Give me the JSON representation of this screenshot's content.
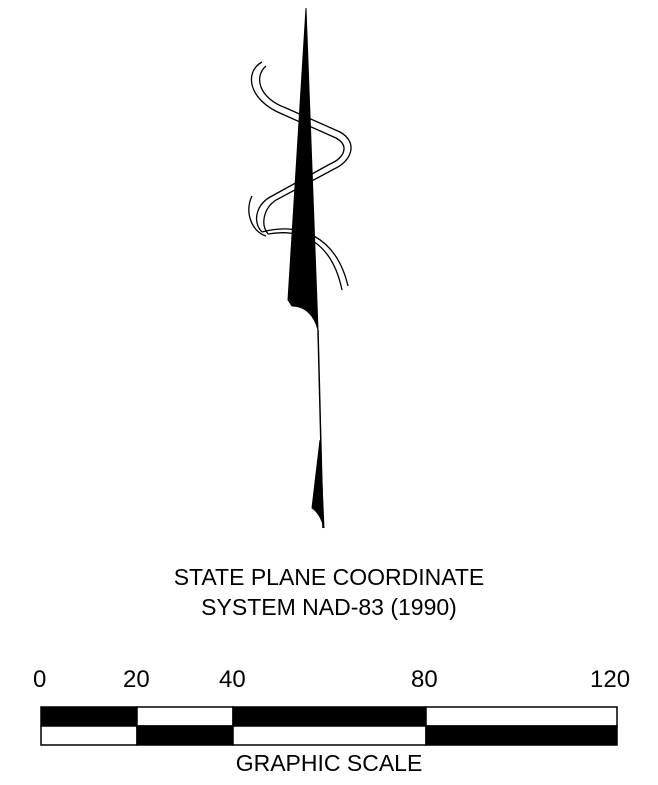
{
  "caption": {
    "line1": "STATE PLANE COORDINATE",
    "line2": "SYSTEM NAD-83 (1990)"
  },
  "scale": {
    "ticks": [
      "0",
      "20",
      "40",
      "80",
      "120"
    ],
    "title": "GRAPHIC SCALE"
  }
}
